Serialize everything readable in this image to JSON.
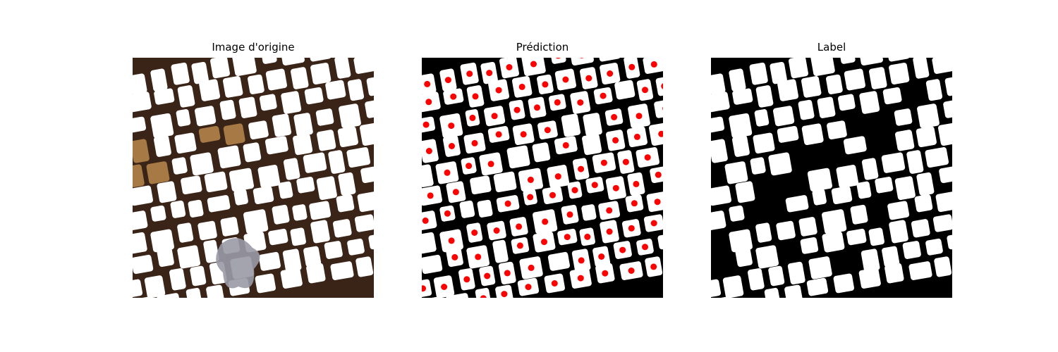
{
  "panels": [
    {
      "title": "Image d'origine",
      "kind": "original-micrograph"
    },
    {
      "title": "Prédiction",
      "kind": "predicted-mask-with-centroids"
    },
    {
      "title": "Label",
      "kind": "ground-truth-mask"
    }
  ],
  "colors": {
    "background": "#ffffff",
    "cell_lumen": "#ffffff",
    "cell_wall_original": "#3a2418",
    "cell_wall_mask": "#000000",
    "latewood_tint": "#a77a45",
    "centroid_marker": "#ff0000",
    "artifact_blob": "#9a9aa6"
  }
}
